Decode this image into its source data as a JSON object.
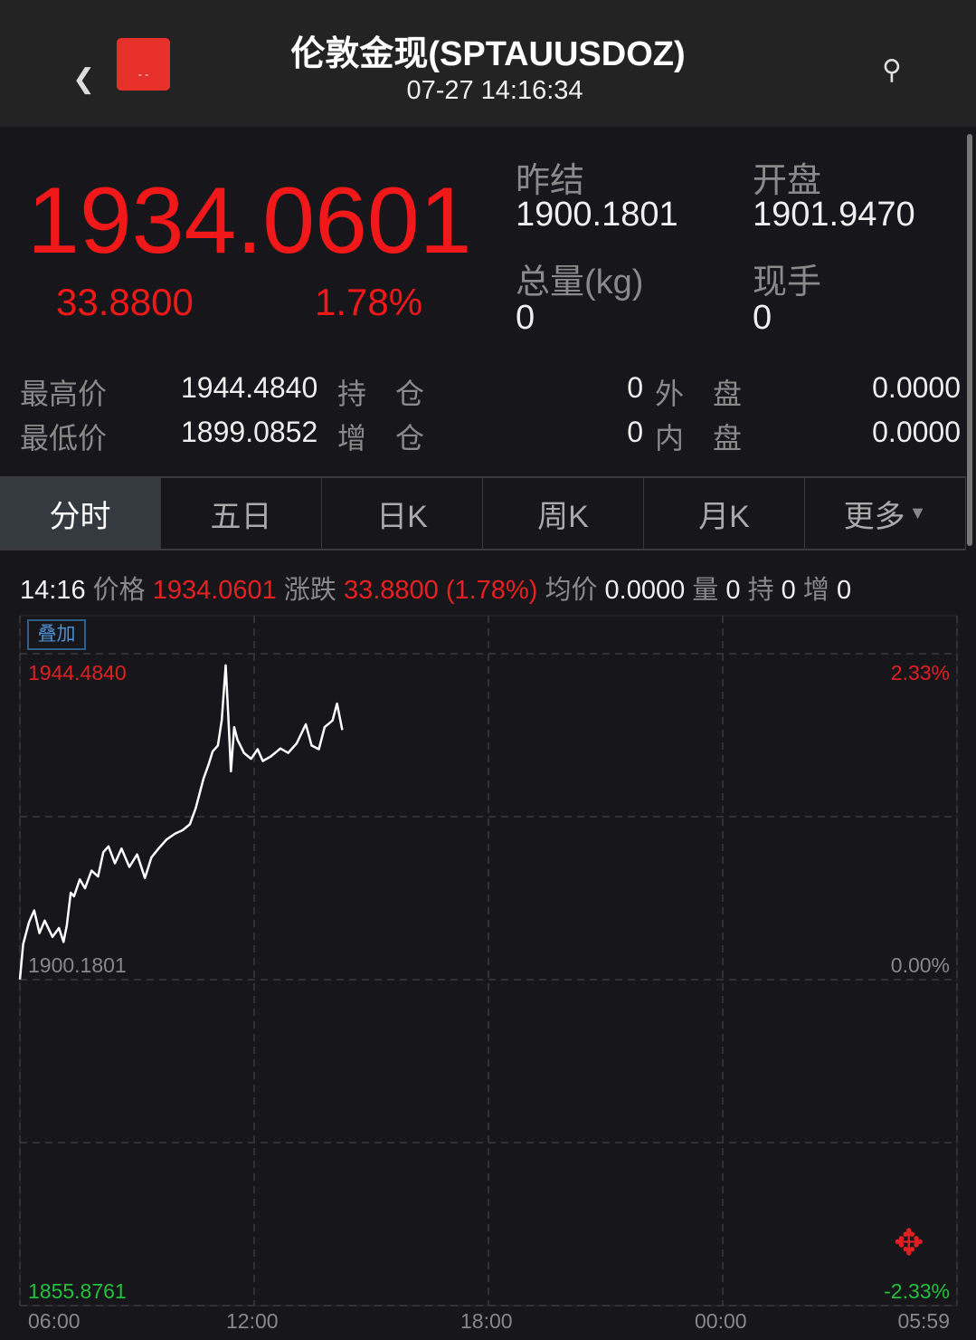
{
  "header": {
    "title": "伦敦金现(SPTAUUSDOZ)",
    "datetime": "07-27 14:16:34",
    "back_icon": "chevron-left-icon",
    "search_icon": "search-icon",
    "app_icon": "red-app-icon"
  },
  "quote": {
    "price": "1934.0601",
    "change": "33.8800",
    "change_pct": "1.78%",
    "prev_close_label": "昨结",
    "prev_close": "1900.1801",
    "open_label": "开盘",
    "open": "1901.9470",
    "volume_label": "总量(kg)",
    "volume": "0",
    "current_label": "现手",
    "current": "0"
  },
  "stats": [
    {
      "l1": "最高价",
      "v1": "1944.4840",
      "l2": "持　仓",
      "v2": "0",
      "l3": "外　盘",
      "v3": "0.0000"
    },
    {
      "l1": "最低价",
      "v1": "1899.0852",
      "l2": "增　仓",
      "v2": "0",
      "l3": "内　盘",
      "v3": "0.0000"
    }
  ],
  "tabs": [
    {
      "label": "分时",
      "active": true
    },
    {
      "label": "五日"
    },
    {
      "label": "日K"
    },
    {
      "label": "周K"
    },
    {
      "label": "月K"
    },
    {
      "label": "更多"
    }
  ],
  "info_bar": {
    "time": "14:16",
    "price_label": "价格",
    "price": "1934.0601",
    "change_label": "涨跌",
    "change": "33.8800 (1.78%)",
    "avg_label": "均价",
    "avg": "0.0000",
    "vol_label": "量",
    "vol": "0",
    "hold_label": "持",
    "hold": "0",
    "inc_label": "增",
    "inc": "0"
  },
  "overlay_button": "叠加",
  "colors": {
    "up": "#f01818",
    "down": "#22c03a",
    "line": "#ffffff",
    "bg": "#16161b"
  },
  "chart_data": {
    "type": "line",
    "y_top": "1944.4840",
    "y_mid": "1900.1801",
    "y_bottom": "1855.8761",
    "pct_top": "2.33%",
    "pct_mid": "0.00%",
    "pct_bottom": "-2.33%",
    "ylim": [
      1855.8761,
      1944.484
    ],
    "x_ticks": [
      "06:00",
      "12:00",
      "18:00",
      "00:00",
      "05:59"
    ],
    "grid": true,
    "series": [
      {
        "points": [
          [
            "06:00",
            1900.2
          ],
          [
            "06:05",
            1905.0
          ],
          [
            "06:14",
            1908.0
          ],
          [
            "06:22",
            1909.6
          ],
          [
            "06:30",
            1906.5
          ],
          [
            "06:38",
            1908.2
          ],
          [
            "06:50",
            1906.0
          ],
          [
            "07:00",
            1907.2
          ],
          [
            "07:07",
            1905.3
          ],
          [
            "07:12",
            1907.5
          ],
          [
            "07:18",
            1912.0
          ],
          [
            "07:23",
            1911.5
          ],
          [
            "07:32",
            1913.8
          ],
          [
            "07:40",
            1912.6
          ],
          [
            "07:50",
            1915.0
          ],
          [
            "08:00",
            1914.2
          ],
          [
            "08:08",
            1917.5
          ],
          [
            "08:16",
            1918.3
          ],
          [
            "08:26",
            1916.0
          ],
          [
            "08:36",
            1918.0
          ],
          [
            "08:48",
            1915.5
          ],
          [
            "09:00",
            1917.2
          ],
          [
            "09:12",
            1914.0
          ],
          [
            "09:22",
            1916.8
          ],
          [
            "09:33",
            1918.0
          ],
          [
            "09:45",
            1919.2
          ],
          [
            "09:58",
            1920.0
          ],
          [
            "10:10",
            1920.5
          ],
          [
            "10:21",
            1921.3
          ],
          [
            "10:30",
            1923.5
          ],
          [
            "10:42",
            1927.5
          ],
          [
            "10:50",
            1929.5
          ],
          [
            "10:56",
            1931.2
          ],
          [
            "11:04",
            1932.0
          ],
          [
            "11:10",
            1935.5
          ],
          [
            "11:16",
            1942.9
          ],
          [
            "11:20",
            1936.0
          ],
          [
            "11:24",
            1928.5
          ],
          [
            "11:29",
            1934.5
          ],
          [
            "11:34",
            1932.8
          ],
          [
            "11:44",
            1931.0
          ],
          [
            "11:55",
            1930.2
          ],
          [
            "12:05",
            1931.5
          ],
          [
            "12:13",
            1929.9
          ],
          [
            "12:25",
            1930.5
          ],
          [
            "12:40",
            1931.6
          ],
          [
            "12:52",
            1931.0
          ],
          [
            "13:05",
            1932.3
          ],
          [
            "13:19",
            1934.9
          ],
          [
            "13:28",
            1932.0
          ],
          [
            "13:39",
            1931.5
          ],
          [
            "13:48",
            1934.5
          ],
          [
            "14:00",
            1935.4
          ],
          [
            "14:07",
            1937.7
          ],
          [
            "14:15",
            1934.1
          ]
        ]
      }
    ]
  }
}
